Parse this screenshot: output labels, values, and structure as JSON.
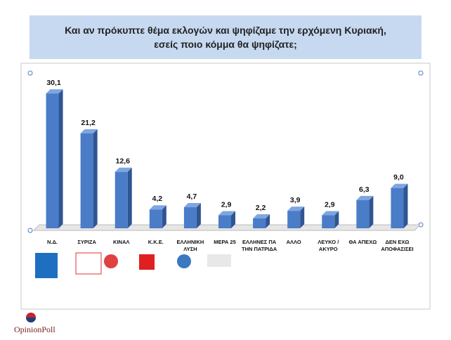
{
  "chart_data": {
    "type": "bar",
    "title": "Και αν πρόκυπτε θέμα εκλογών και ψηφίζαμε την ερχόμενη Κυριακή, εσείς ποιο κόμμα θα ψηφίζατε;",
    "categories": [
      "Ν.Δ.",
      "ΣΥΡΙΖΑ",
      "ΚΙΝΑΛ",
      "Κ.Κ.Ε.",
      "ΕΛΛΗΝΙΚΗ ΛΥΣΗ",
      "ΜΕΡΑ 25",
      "ΕΛΛΗΝΕΣ ΠΑ ΤΗΝ ΠΑΤΡΙΔΑ",
      "ΑΛΛΟ",
      "ΛΕΥΚΟ / ΑΚΥΡΟ",
      "ΘΑ ΑΠΕΧΩ",
      "ΔΕΝ ΕΧΩ ΑΠΟΦΑΣΙΣΕΙ"
    ],
    "values": [
      30.1,
      21.2,
      12.6,
      4.2,
      4.7,
      2.9,
      2.2,
      3.9,
      2.9,
      6.3,
      9.0
    ],
    "value_labels": [
      "30,1",
      "21,2",
      "12,6",
      "4,2",
      "4,7",
      "2,9",
      "2,2",
      "3,9",
      "2,9",
      "6,3",
      "9,0"
    ],
    "color": "#4a7cc7",
    "ylim": [
      0,
      32
    ],
    "footer": "OpinionPoll"
  }
}
